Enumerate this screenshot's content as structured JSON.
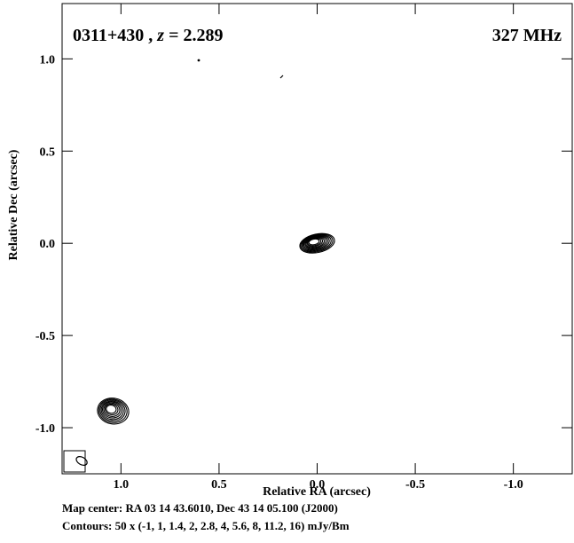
{
  "chart_data": {
    "type": "contour",
    "title_source": "0311+430",
    "title_z_label": "z",
    "title_redshift": "= 2.289",
    "frequency": "327 MHz",
    "xlabel": "Relative RA (arcsec)",
    "ylabel": "Relative Dec (arcsec)",
    "xlim": [
      1.3,
      -1.3
    ],
    "ylim": [
      -1.25,
      1.3
    ],
    "x_ticks": [
      {
        "value": 1.0,
        "label": "1.0"
      },
      {
        "value": 0.5,
        "label": "0.5"
      },
      {
        "value": 0.0,
        "label": "0.0"
      },
      {
        "value": -0.5,
        "label": "-0.5"
      },
      {
        "value": -1.0,
        "label": "-1.0"
      }
    ],
    "y_ticks": [
      {
        "value": 1.0,
        "label": "1.0"
      },
      {
        "value": 0.5,
        "label": "0.5"
      },
      {
        "value": 0.0,
        "label": "0.0"
      },
      {
        "value": -0.5,
        "label": "-0.5"
      },
      {
        "value": -1.0,
        "label": "-1.0"
      }
    ],
    "components": [
      {
        "x": 0.0,
        "y": 0.0,
        "rx": 0.09,
        "ry": 0.05,
        "angle": -12,
        "levels": 10
      },
      {
        "x": 1.04,
        "y": -0.91,
        "rx": 0.08,
        "ry": 0.07,
        "angle": 10,
        "levels": 8
      }
    ],
    "beam": {
      "x": 1.2,
      "y": -1.18,
      "rx": 0.03,
      "ry": 0.02,
      "angle": 30
    },
    "map_center": "Map center: RA 03 14 43.6010, Dec 43 14 05.100 (J2000)",
    "contours": "Contours: 50 x (-1, 1, 1.4, 2, 2.8, 4, 5.6, 8, 11.2, 16) mJy/Bm"
  }
}
